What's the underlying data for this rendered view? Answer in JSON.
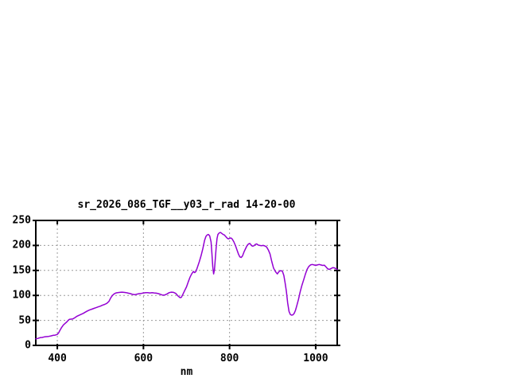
{
  "window": {
    "background": "#ffffff"
  },
  "chart_data": {
    "type": "line",
    "title": "sr_2026_086_TGF__y03_r_rad 14-20-00",
    "xlabel": "nm",
    "ylabel": "",
    "xlim": [
      350,
      1050
    ],
    "ylim": [
      0,
      250
    ],
    "x_ticks": [
      400,
      600,
      800,
      1000
    ],
    "y_ticks": [
      0,
      50,
      100,
      150,
      200,
      250
    ],
    "grid": "dashed",
    "legend_position": "none",
    "line_color": "#9400d3",
    "grid_color": "#9c9c9c",
    "axis_color": "#000000",
    "series": [
      {
        "name": "sr_2026_086_TGF__y03_r_rad",
        "x": [
          350,
          355,
          360,
          365,
          370,
          375,
          380,
          385,
          390,
          395,
          400,
          403,
          406,
          410,
          414,
          418,
          422,
          425,
          428,
          432,
          436,
          440,
          445,
          450,
          455,
          460,
          465,
          470,
          475,
          480,
          485,
          490,
          495,
          500,
          505,
          510,
          515,
          520,
          524,
          528,
          532,
          536,
          540,
          545,
          550,
          555,
          560,
          565,
          570,
          575,
          580,
          585,
          590,
          595,
          600,
          605,
          610,
          615,
          620,
          625,
          630,
          635,
          640,
          645,
          650,
          655,
          660,
          665,
          670,
          675,
          680,
          685,
          688,
          692,
          696,
          700,
          704,
          708,
          712,
          716,
          719,
          722,
          726,
          730,
          734,
          738,
          742,
          745,
          748,
          751,
          754,
          757,
          759,
          761,
          763,
          765,
          767,
          769,
          771,
          773,
          776,
          779,
          782,
          785,
          788,
          791,
          794,
          797,
          800,
          803,
          806,
          810,
          814,
          818,
          821,
          824,
          827,
          830,
          834,
          838,
          841,
          844,
          847,
          850,
          853,
          856,
          860,
          863,
          866,
          870,
          874,
          878,
          882,
          886,
          890,
          894,
          898,
          902,
          905,
          908,
          911,
          914,
          917,
          920,
          923,
          926,
          929,
          932,
          935,
          938,
          941,
          944,
          947,
          950,
          953,
          956,
          960,
          964,
          968,
          972,
          976,
          980,
          984,
          988,
          992,
          996,
          1000,
          1004,
          1008,
          1012,
          1016,
          1020,
          1024,
          1028,
          1032,
          1036,
          1040,
          1044,
          1048,
          1050
        ],
        "y": [
          13,
          14,
          15.5,
          16,
          17,
          17.5,
          18,
          19,
          20,
          20.5,
          22,
          25,
          30,
          36,
          41,
          44,
          47,
          50,
          52,
          52.5,
          53,
          55,
          58,
          60,
          62,
          64,
          66.5,
          69,
          71,
          72.5,
          74,
          75.5,
          77,
          78.5,
          80.5,
          82,
          84,
          88,
          95,
          100,
          103,
          105,
          105.5,
          106,
          106.5,
          106,
          105.5,
          104.5,
          103.5,
          102,
          101.5,
          102.5,
          103.5,
          104,
          105,
          105.5,
          105.5,
          105,
          105.5,
          105,
          104.5,
          103.5,
          102,
          100.5,
          101,
          103,
          105.5,
          106.5,
          106,
          104,
          99,
          95.5,
          96,
          103,
          110,
          117,
          127,
          136,
          143,
          148,
          145.5,
          148,
          158,
          168,
          180,
          194,
          210,
          218,
          221,
          222,
          219,
          207,
          185,
          158,
          143,
          152,
          175,
          198,
          214,
          222,
          225,
          226,
          224,
          222,
          221,
          218,
          215,
          213,
          214,
          215,
          213,
          207,
          199,
          189,
          182,
          177,
          176,
          179,
          188,
          195,
          200,
          203,
          204,
          201,
          198.5,
          199,
          202,
          203,
          201,
          200,
          199.5,
          200,
          199,
          197,
          191,
          183,
          168,
          155,
          150,
          146,
          143,
          147,
          149,
          149.5,
          148,
          140,
          125,
          108,
          85,
          68,
          62,
          60.5,
          61,
          64,
          70,
          79,
          92,
          107,
          120,
          131,
          142,
          152,
          158,
          161,
          162,
          161,
          160,
          161,
          162,
          161,
          160,
          160.5,
          157,
          153,
          152,
          154,
          155.5,
          155,
          153,
          152
        ]
      }
    ]
  }
}
